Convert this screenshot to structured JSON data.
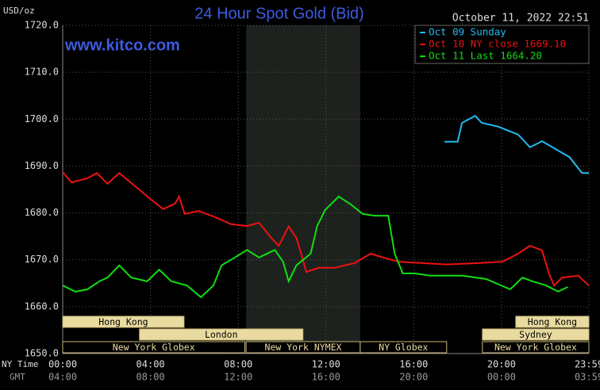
{
  "chart_data": {
    "type": "line",
    "title": "24 Hour Spot Gold (Bid)",
    "y_label": "USD/oz",
    "date_stamp": "October 11, 2022 22:51",
    "watermark": "www.kitco.com",
    "x_row_labels": [
      "NY Time",
      "GMT"
    ],
    "xlim": [
      0,
      23.983
    ],
    "xticks": [
      {
        "value": 0,
        "label": "00:00"
      },
      {
        "value": 4,
        "label": "04:00"
      },
      {
        "value": 8,
        "label": "08:00"
      },
      {
        "value": 12,
        "label": "12:00"
      },
      {
        "value": 16,
        "label": "16:00"
      },
      {
        "value": 20,
        "label": "20:00"
      },
      {
        "value": 23.983,
        "label": "23:59"
      }
    ],
    "gmt_labels": [
      "04:00",
      "08:00",
      "12:00",
      "16:00",
      "20:00",
      "00:00",
      "03:59"
    ],
    "ylim": [
      1650,
      1720
    ],
    "yticks": [
      {
        "value": 1650,
        "label": "1650.0"
      },
      {
        "value": 1660,
        "label": "1660.0"
      },
      {
        "value": 1670,
        "label": "1670.0"
      },
      {
        "value": 1680,
        "label": "1680.0"
      },
      {
        "value": 1690,
        "label": "1690.0"
      },
      {
        "value": 1700,
        "label": "1700.0"
      },
      {
        "value": 1710,
        "label": "1710.0"
      },
      {
        "value": 1720,
        "label": "1720.0"
      }
    ],
    "grid": true,
    "legend": "top-right",
    "shaded_range": [
      8.36,
      13.56
    ],
    "sessions": [
      {
        "label": "Hong Kong",
        "start": 0,
        "end": 5.53,
        "row": 1
      },
      {
        "label": "Hong Kong",
        "start": 20.65,
        "end": 23.983,
        "row": 1
      },
      {
        "label": "London",
        "start": 3.5,
        "end": 10.95,
        "row": 2
      },
      {
        "label": "Sydney",
        "start": 19.13,
        "end": 23.983,
        "row": 2
      },
      {
        "label": "New York Globex",
        "start": 0,
        "end": 8.3,
        "row": 3
      },
      {
        "label": "New York NYMEX",
        "start": 8.36,
        "end": 13.56,
        "row": 3
      },
      {
        "label": "NY Globex",
        "start": 13.56,
        "end": 17.5,
        "row": 3
      },
      {
        "label": "New York Globex",
        "start": 19.13,
        "end": 23.983,
        "row": 3
      }
    ],
    "series": [
      {
        "name": "Oct 09 Sunday",
        "color": "#22bbee",
        "x": [
          17.4,
          18.0,
          18.2,
          18.8,
          19.1,
          19.85,
          20.76,
          21.3,
          21.85,
          22.58,
          23.1,
          23.67,
          23.983
        ],
        "values": [
          1695.2,
          1695.2,
          1699.2,
          1700.7,
          1699.2,
          1698.4,
          1696.7,
          1694.0,
          1695.3,
          1693.3,
          1691.9,
          1688.5,
          1688.5
        ]
      },
      {
        "name": "Oct 10 NY close 1669.10",
        "color": "#ee1111",
        "x": [
          0,
          0.4,
          1.13,
          1.56,
          2.04,
          2.58,
          3.3,
          4.04,
          4.58,
          5.13,
          5.3,
          5.56,
          6.2,
          6.95,
          7.67,
          8.4,
          8.95,
          9.5,
          9.85,
          10.3,
          10.65,
          10.87,
          11.1,
          11.67,
          12.4,
          13.3,
          14.04,
          14.6,
          15.3,
          16.4,
          17.5,
          18.95,
          20.04,
          20.76,
          21.3,
          21.85,
          22.16,
          22.4,
          22.76,
          23.5,
          23.983
        ],
        "values": [
          1688.7,
          1686.5,
          1687.4,
          1688.5,
          1686.2,
          1688.5,
          1685.7,
          1682.8,
          1680.8,
          1682.0,
          1683.5,
          1679.8,
          1680.4,
          1679.1,
          1677.6,
          1677.2,
          1677.9,
          1674.7,
          1673.0,
          1677.1,
          1674.7,
          1671.3,
          1667.4,
          1668.3,
          1668.3,
          1669.3,
          1671.3,
          1670.5,
          1669.6,
          1669.3,
          1669.0,
          1669.3,
          1669.6,
          1671.3,
          1673.0,
          1672.0,
          1667.1,
          1664.5,
          1666.2,
          1666.6,
          1664.5
        ]
      },
      {
        "name": "Oct 11 Last 1664.20",
        "color": "#11dd11",
        "x": [
          0,
          0.58,
          1.13,
          1.67,
          2.04,
          2.58,
          3.13,
          3.85,
          4.4,
          4.95,
          5.67,
          6.3,
          6.87,
          7.24,
          7.85,
          8.4,
          8.95,
          9.67,
          10.04,
          10.3,
          10.65,
          11.3,
          11.6,
          11.96,
          12.58,
          13.13,
          13.67,
          14.2,
          14.84,
          15.13,
          15.5,
          16.04,
          16.76,
          18.22,
          19.3,
          20.4,
          20.95,
          21.42,
          22.04,
          22.58,
          23.02
        ],
        "values": [
          1664.5,
          1663.2,
          1663.7,
          1665.4,
          1666.2,
          1668.8,
          1666.2,
          1665.4,
          1667.9,
          1665.4,
          1664.5,
          1662.0,
          1664.5,
          1668.8,
          1670.5,
          1672.1,
          1670.5,
          1672.1,
          1669.6,
          1665.4,
          1668.8,
          1671.3,
          1677.2,
          1680.6,
          1683.5,
          1681.8,
          1679.8,
          1679.4,
          1679.4,
          1671.3,
          1667.1,
          1667.1,
          1666.6,
          1666.6,
          1665.9,
          1663.7,
          1666.2,
          1665.4,
          1664.5,
          1663.2,
          1664.2
        ]
      }
    ]
  }
}
